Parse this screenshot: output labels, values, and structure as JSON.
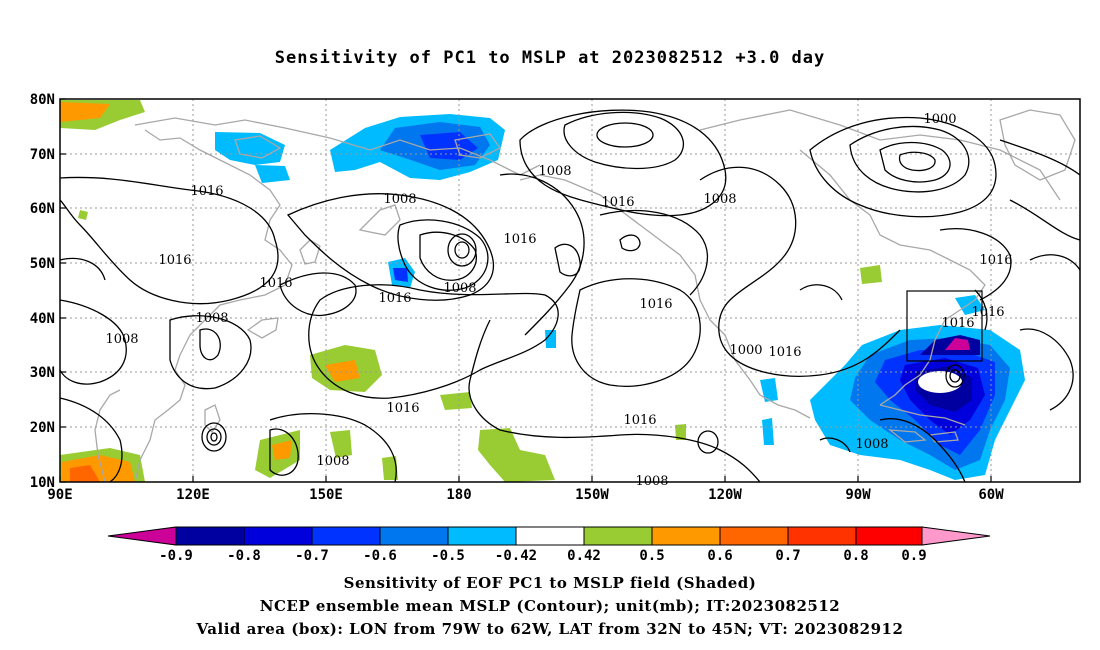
{
  "title": "Sensitivity of PC1 to MSLP at 2023082512 +3.0 day",
  "map": {
    "lat_labels": [
      "80N",
      "70N",
      "60N",
      "50N",
      "40N",
      "30N",
      "20N",
      "10N"
    ],
    "lon_labels": [
      "90E",
      "120E",
      "150E",
      "180",
      "150W",
      "120W",
      "90W",
      "60W"
    ],
    "contour_labels": [
      {
        "text": "1016"
      },
      {
        "text": "1016"
      },
      {
        "text": "1016"
      },
      {
        "text": "1008"
      },
      {
        "text": "1008"
      },
      {
        "text": "1008"
      },
      {
        "text": "1016"
      },
      {
        "text": "1008"
      },
      {
        "text": "1016"
      },
      {
        "text": "1016"
      },
      {
        "text": "1016"
      },
      {
        "text": "1008"
      },
      {
        "text": "1008"
      },
      {
        "text": "1016"
      },
      {
        "text": "1016"
      },
      {
        "text": "1000"
      },
      {
        "text": "1008"
      },
      {
        "text": "1016"
      },
      {
        "text": "1016"
      },
      {
        "text": "1008"
      },
      {
        "text": "1016"
      },
      {
        "text": "1008"
      },
      {
        "text": "1000"
      },
      {
        "text": "1016"
      },
      {
        "text": "1008"
      }
    ],
    "valid_box": {
      "lon_min": "79W",
      "lon_max": "62W",
      "lat_min": "32N",
      "lat_max": "45N"
    }
  },
  "colorbar": {
    "labels": [
      "-0.9",
      "-0.8",
      "-0.7",
      "-0.6",
      "-0.5",
      "-0.42",
      "0.42",
      "0.5",
      "0.6",
      "0.7",
      "0.8",
      "0.9"
    ],
    "colors": [
      "#cc0099",
      "#0000a0",
      "#0000dd",
      "#0033ff",
      "#0077ee",
      "#00bbff",
      "#ffffff",
      "#99cc33",
      "#ff9900",
      "#ff6600",
      "#ff3300",
      "#ff0000",
      "#ff99cc"
    ]
  },
  "captions": [
    "Sensitivity of EOF PC1 to MSLP field (Shaded)",
    "NCEP ensemble mean MSLP (Contour); unit(mb); IT:2023082512",
    "Valid area (box): LON from 79W to 62W, LAT from 32N to 45N; VT: 2023082912"
  ]
}
